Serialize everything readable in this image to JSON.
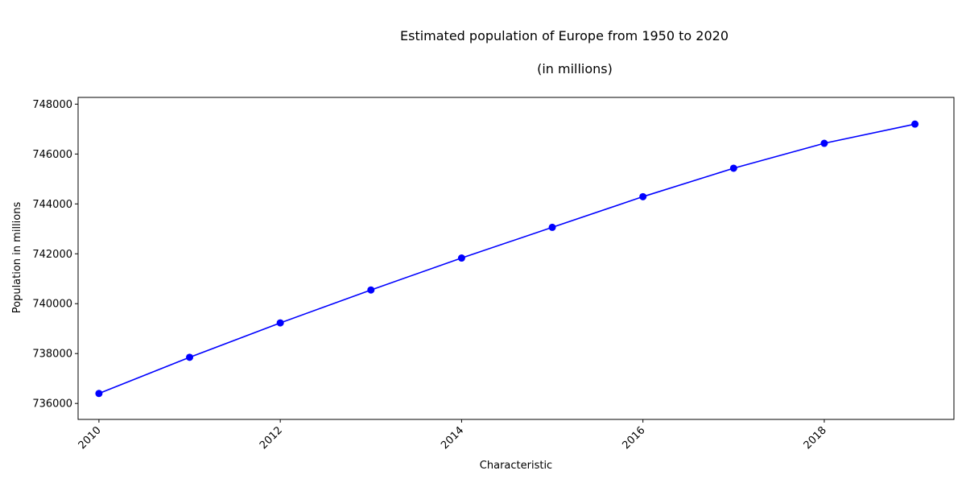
{
  "chart_data": {
    "type": "line",
    "title": "Estimated population of Europe from 1950 to 2020",
    "subtitle": "(in millions)",
    "xlabel": "Characteristic",
    "ylabel": "Population in millions",
    "x": [
      2010,
      2011,
      2012,
      2013,
      2014,
      2015,
      2016,
      2017,
      2018,
      2019
    ],
    "series": [
      {
        "values": [
          736400,
          737850,
          739230,
          740550,
          741830,
          743060,
          744290,
          745430,
          746430,
          747200
        ],
        "color": "#0000ff"
      }
    ],
    "xlim": [
      2009.77,
      2019.43
    ],
    "ylim": [
      735360,
      748270
    ],
    "xticks": [
      2010,
      2012,
      2014,
      2016,
      2018
    ],
    "xtick_labels": [
      "2010",
      "2012",
      "2014",
      "2016",
      "2018"
    ],
    "yticks": [
      736000,
      738000,
      740000,
      742000,
      744000,
      746000,
      748000
    ],
    "ytick_labels": [
      "736000",
      "738000",
      "740000",
      "742000",
      "744000",
      "746000",
      "748000"
    ],
    "grid": false,
    "legend": "none"
  }
}
